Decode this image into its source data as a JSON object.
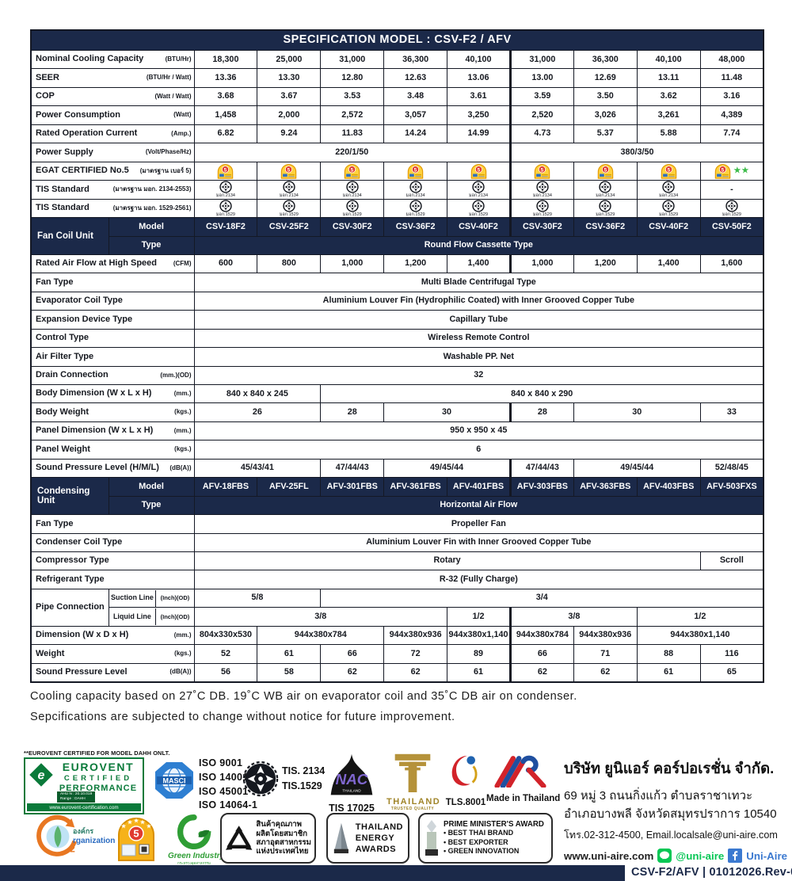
{
  "header": {
    "title": "SPECIFICATION MODEL : CSV-F2 / AFV"
  },
  "colors": {
    "navy": "#1b2949",
    "eurovent_green": "#0a7a3a",
    "star_green": "#3dbb4a",
    "line_green": "#06c755",
    "facebook_blue": "#3b79d0"
  },
  "spec_table": {
    "rows": [
      {
        "kind": "data",
        "label": "Nominal Cooling Capacity",
        "unit": "(BTU/Hr)",
        "cells": [
          {
            "t": "18,300"
          },
          {
            "t": "25,000"
          },
          {
            "t": "31,000"
          },
          {
            "t": "36,300"
          },
          {
            "t": "40,100"
          },
          {
            "t": "31,000"
          },
          {
            "t": "36,300"
          },
          {
            "t": "40,100"
          },
          {
            "t": "48,000"
          }
        ]
      },
      {
        "kind": "data",
        "label": "SEER",
        "unit": "(BTU/Hr / Watt)",
        "cells": [
          {
            "t": "13.36"
          },
          {
            "t": "13.30"
          },
          {
            "t": "12.80"
          },
          {
            "t": "12.63"
          },
          {
            "t": "13.06"
          },
          {
            "t": "13.00"
          },
          {
            "t": "12.69"
          },
          {
            "t": "13.11"
          },
          {
            "t": "11.48"
          }
        ]
      },
      {
        "kind": "data",
        "label": "COP",
        "unit": "(Watt / Watt)",
        "cells": [
          {
            "t": "3.68"
          },
          {
            "t": "3.67"
          },
          {
            "t": "3.53"
          },
          {
            "t": "3.48"
          },
          {
            "t": "3.61"
          },
          {
            "t": "3.59"
          },
          {
            "t": "3.50"
          },
          {
            "t": "3.62"
          },
          {
            "t": "3.16"
          }
        ]
      },
      {
        "kind": "data",
        "label": "Power Consumption",
        "unit": "(Watt)",
        "cells": [
          {
            "t": "1,458"
          },
          {
            "t": "2,000"
          },
          {
            "t": "2,572"
          },
          {
            "t": "3,057"
          },
          {
            "t": "3,250"
          },
          {
            "t": "2,520"
          },
          {
            "t": "3,026"
          },
          {
            "t": "3,261"
          },
          {
            "t": "4,389"
          }
        ]
      },
      {
        "kind": "data",
        "label": "Rated Operation Current",
        "unit": "(Amp.)",
        "cells": [
          {
            "t": "6.82"
          },
          {
            "t": "9.24"
          },
          {
            "t": "11.83"
          },
          {
            "t": "14.24"
          },
          {
            "t": "14.99"
          },
          {
            "t": "4.73"
          },
          {
            "t": "5.37"
          },
          {
            "t": "5.88"
          },
          {
            "t": "7.74"
          }
        ]
      },
      {
        "kind": "data",
        "label": "Power Supply",
        "unit": "(Volt/Phase/Hz)",
        "cells": [
          {
            "t": "220/1/50",
            "s": 5
          },
          {
            "t": "380/3/50",
            "s": 4
          }
        ]
      },
      {
        "kind": "data",
        "label": "EGAT CERTIFIED No.5",
        "unit": "(มาตรฐาน เบอร์ 5)",
        "cells": [
          {
            "icon": "egat-no5-label"
          },
          {
            "icon": "egat-no5-label"
          },
          {
            "icon": "egat-no5-label"
          },
          {
            "icon": "egat-no5-label"
          },
          {
            "icon": "egat-no5-label"
          },
          {
            "icon": "egat-no5-label"
          },
          {
            "icon": "egat-no5-label"
          },
          {
            "icon": "egat-no5-label"
          },
          {
            "icon": "egat-no5-label",
            "stars": "★★"
          }
        ]
      },
      {
        "kind": "data",
        "label": "TIS Standard",
        "unit": "(มาตรฐาน มอก. 2134-2553)",
        "cells": [
          {
            "icon": "tis-mark",
            "sub": "มอก.2134"
          },
          {
            "icon": "tis-mark",
            "sub": "มอก.2134"
          },
          {
            "icon": "tis-mark",
            "sub": "มอก.2134"
          },
          {
            "icon": "tis-mark",
            "sub": "มอก.2134"
          },
          {
            "icon": "tis-mark",
            "sub": "มอก.2134"
          },
          {
            "icon": "tis-mark",
            "sub": "มอก.2134"
          },
          {
            "icon": "tis-mark",
            "sub": "มอก.2134"
          },
          {
            "icon": "tis-mark",
            "sub": "มอก.2134"
          },
          {
            "t": "-"
          }
        ]
      },
      {
        "kind": "data",
        "label": "TIS Standard",
        "unit": "(มาตรฐาน มอก. 1529-2561)",
        "cells": [
          {
            "icon": "tis-mark",
            "sub": "มอก.1529"
          },
          {
            "icon": "tis-mark",
            "sub": "มอก.1529"
          },
          {
            "icon": "tis-mark",
            "sub": "มอก.1529"
          },
          {
            "icon": "tis-mark",
            "sub": "มอก.1529"
          },
          {
            "icon": "tis-mark",
            "sub": "มอก.1529"
          },
          {
            "icon": "tis-mark",
            "sub": "มอก.1529"
          },
          {
            "icon": "tis-mark",
            "sub": "มอก.1529"
          },
          {
            "icon": "tis-mark",
            "sub": "มอก.1529"
          },
          {
            "icon": "tis-mark",
            "sub": "มอก.1529"
          }
        ]
      },
      {
        "kind": "group",
        "main": "Fan Coil Unit",
        "row1_label": "Model",
        "row2_label": "Type",
        "models": [
          "CSV-18F2",
          "CSV-25F2",
          "CSV-30F2",
          "CSV-36F2",
          "CSV-40F2",
          "CSV-30F2",
          "CSV-36F2",
          "CSV-40F2",
          "CSV-50F2"
        ],
        "type_text": "Round Flow Cassette Type"
      },
      {
        "kind": "data",
        "label": "Rated Air Flow at High Speed",
        "unit": "(CFM)",
        "cells": [
          {
            "t": "600"
          },
          {
            "t": "800"
          },
          {
            "t": "1,000"
          },
          {
            "t": "1,200"
          },
          {
            "t": "1,400"
          },
          {
            "t": "1,000"
          },
          {
            "t": "1,200"
          },
          {
            "t": "1,400"
          },
          {
            "t": "1,600"
          }
        ]
      },
      {
        "kind": "data",
        "label": "Fan Type",
        "cells": [
          {
            "t": "Multi Blade Centrifugal Type",
            "s": 9
          }
        ]
      },
      {
        "kind": "data",
        "label": "Evaporator Coil Type",
        "cells": [
          {
            "t": "Aluminium Louver Fin (Hydrophilic Coated) with Inner Grooved Copper Tube",
            "s": 9
          }
        ]
      },
      {
        "kind": "data",
        "label": "Expansion Device Type",
        "cells": [
          {
            "t": "Capillary Tube",
            "s": 9
          }
        ]
      },
      {
        "kind": "data",
        "label": "Control Type",
        "cells": [
          {
            "t": "Wireless Remote Control",
            "s": 9
          }
        ]
      },
      {
        "kind": "data",
        "label": "Air Filter Type",
        "cells": [
          {
            "t": "Washable PP. Net",
            "s": 9
          }
        ]
      },
      {
        "kind": "data",
        "label": "Drain Connection",
        "unit": "(mm.)(OD)",
        "cells": [
          {
            "t": "32",
            "s": 9
          }
        ]
      },
      {
        "kind": "data",
        "label": "Body Dimension (W x L x H)",
        "unit": "(mm.)",
        "cells": [
          {
            "t": "840 x 840 x 245",
            "s": 2
          },
          {
            "t": "840 x 840 x 290",
            "s": 7
          }
        ]
      },
      {
        "kind": "data",
        "label": "Body Weight",
        "unit": "(kgs.)",
        "cells": [
          {
            "t": "26",
            "s": 2
          },
          {
            "t": "28"
          },
          {
            "t": "30",
            "s": 2
          },
          {
            "t": "28"
          },
          {
            "t": "30",
            "s": 2
          },
          {
            "t": "33"
          }
        ]
      },
      {
        "kind": "data",
        "label": "Panel Dimension (W x L x H)",
        "unit": "(mm.)",
        "cells": [
          {
            "t": "950 x 950 x 45",
            "s": 9
          }
        ]
      },
      {
        "kind": "data",
        "label": "Panel Weight",
        "unit": "(kgs.)",
        "cells": [
          {
            "t": "6",
            "s": 9
          }
        ]
      },
      {
        "kind": "data",
        "label": "Sound Pressure Level (H/M/L)",
        "unit": "(dB(A))",
        "cells": [
          {
            "t": "45/43/41",
            "s": 2
          },
          {
            "t": "47/44/43"
          },
          {
            "t": "49/45/44",
            "s": 2
          },
          {
            "t": "47/44/43"
          },
          {
            "t": "49/45/44",
            "s": 2
          },
          {
            "t": "52/48/45"
          }
        ]
      },
      {
        "kind": "group",
        "main": "Condensing Unit",
        "row1_label": "Model",
        "row2_label": "Type",
        "models": [
          "AFV-18FBS",
          "AFV-25FL",
          "AFV-301FBS",
          "AFV-361FBS",
          "AFV-401FBS",
          "AFV-303FBS",
          "AFV-363FBS",
          "AFV-403FBS",
          "AFV-503FXS"
        ],
        "type_text": "Horizontal Air Flow"
      },
      {
        "kind": "data",
        "label": "Fan Type",
        "cells": [
          {
            "t": "Propeller Fan",
            "s": 9
          }
        ]
      },
      {
        "kind": "data",
        "label": "Condenser Coil Type",
        "cells": [
          {
            "t": "Aluminium Louver Fin with Inner Grooved Copper Tube",
            "s": 9
          }
        ]
      },
      {
        "kind": "data",
        "label": "Compressor Type",
        "cells": [
          {
            "t": "Rotary",
            "s": 8
          },
          {
            "t": "Scroll"
          }
        ]
      },
      {
        "kind": "data",
        "label": "Refrigerant Type",
        "cells": [
          {
            "t": "R-32 (Fully Charge)",
            "s": 9
          }
        ]
      },
      {
        "kind": "pipes",
        "main": "Pipe Connection",
        "lines": [
          {
            "sub": "Suction Line",
            "unit": "(Inch)(OD)",
            "cells": [
              {
                "t": "5/8",
                "s": 2
              },
              {
                "t": "3/4",
                "s": 7
              }
            ]
          },
          {
            "sub": "Liquid Line",
            "unit": "(Inch)(OD)",
            "cells": [
              {
                "t": "3/8",
                "s": 4
              },
              {
                "t": "1/2"
              },
              {
                "t": "3/8",
                "s": 2
              },
              {
                "t": "1/2",
                "s": 2
              }
            ]
          }
        ]
      },
      {
        "kind": "data",
        "label": "Dimension (W x D x H)",
        "unit": "(mm.)",
        "cells": [
          {
            "t": "804x330x530"
          },
          {
            "t": "944x380x784",
            "s": 2
          },
          {
            "t": "944x380x936"
          },
          {
            "t": "944x380x1,140"
          },
          {
            "t": "944x380x784"
          },
          {
            "t": "944x380x936"
          },
          {
            "t": "944x380x1,140",
            "s": 2
          }
        ]
      },
      {
        "kind": "data",
        "label": "Weight",
        "unit": "(kgs.)",
        "cells": [
          {
            "t": "52"
          },
          {
            "t": "61"
          },
          {
            "t": "66"
          },
          {
            "t": "72"
          },
          {
            "t": "89"
          },
          {
            "t": "66"
          },
          {
            "t": "71"
          },
          {
            "t": "88"
          },
          {
            "t": "116"
          }
        ]
      },
      {
        "kind": "data",
        "label": "Sound Pressure Level",
        "unit": "(dB(A))",
        "cells": [
          {
            "t": "56"
          },
          {
            "t": "58"
          },
          {
            "t": "62"
          },
          {
            "t": "62"
          },
          {
            "t": "61"
          },
          {
            "t": "62"
          },
          {
            "t": "62"
          },
          {
            "t": "61"
          },
          {
            "t": "65"
          }
        ]
      }
    ]
  },
  "notes": {
    "line1": "Cooling capacity based on 27˚C DB.   19˚C WB air on evaporator coil and 35˚C DB air on condenser.",
    "line2": "Sepcifications are subjected to change without notice for future improvement."
  },
  "certs": {
    "eurovent_note": "**EUROVENT CERTIFIED FOR MODEL DAHH ONLT.",
    "eurovent": {
      "l1": "EUROVENT",
      "l2": "CERTIFIED",
      "l3": "PERFORMANCE",
      "range1": "AHU N : 20.10.019",
      "range2": "Range : DAHH",
      "web": "www.eurovent-certification.com"
    },
    "masci": {
      "label": "MASCI"
    },
    "iso": {
      "l1": "ISO 9001",
      "l2": "ISO 14001",
      "l3": "ISO 45001",
      "l4": "ISO 14064-1"
    },
    "tis_text": {
      "l1": "TIS. 2134",
      "l2": "TIS.1529"
    },
    "nac": {
      "logo_text": "NAC",
      "logo_sub": "THAILAND",
      "label": "TIS 17025"
    },
    "ttq": {
      "l1": "THAILAND",
      "l2": "TRUSTED QUALITY"
    },
    "tls": {
      "label": "TLS.8001"
    },
    "mit": {
      "label": "Made in Thailand"
    },
    "co2": {
      "l1": "องค์กร",
      "l2": "rganization",
      "two": "2"
    },
    "no5": {
      "number": "5"
    },
    "green_industry": {
      "l1": "Green Industry",
      "l2": "กระทรวงอุตสาหกรรม"
    },
    "fti": {
      "l1": "สินค้าคุณภาพ",
      "l2": "ผลิตโดยสมาชิก",
      "l3": "สภาอุตสาหกรรม",
      "l4": "แห่งประเทศไทย"
    },
    "tea": {
      "l1": "THAILAND",
      "l2": "ENERGY",
      "l3": "AWARDS"
    },
    "pma": {
      "title": "PRIME MINISTER'S AWARD",
      "b1": "• BEST THAI BRAND",
      "b2": "• BEST EXPORTER",
      "b3": "• GREEN INNOVATION"
    }
  },
  "company": {
    "name": "บริษัท ยูนิแอร์ คอร์ปอเรชั่น จำกัด.",
    "addr1": "69 หมู่ 3 ถนนกิ่งแก้ว ตำบลราชาเทวะ",
    "addr2": "อำเภอบางพลี จังหวัดสมุทรปราการ 10540",
    "tel": "โทร.02-312-4500, Email.localsale@uni-aire.com",
    "web": "www.uni-aire.com",
    "line_id": "@uni-aire",
    "facebook": "Uni-Aire"
  },
  "footer": {
    "doc_code": "CSV-F2/AFV | 01012026.Rev-00"
  }
}
